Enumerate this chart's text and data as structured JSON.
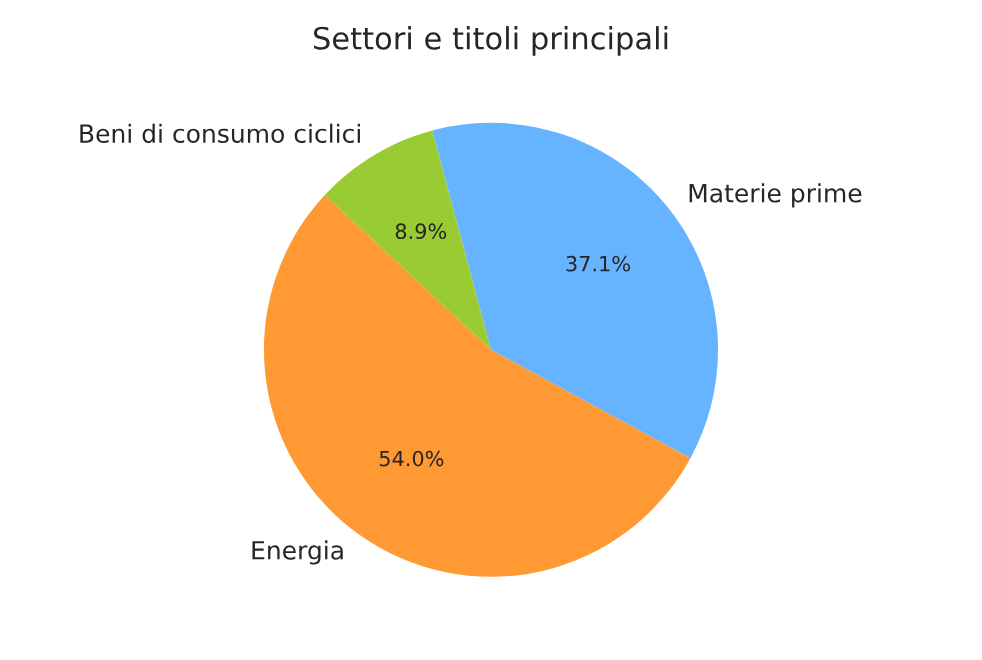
{
  "chart_data": {
    "type": "pie",
    "title": "Settori e titoli principali",
    "categories": [
      "Materie prime",
      "Energia",
      "Beni di consumo ciclici"
    ],
    "values": [
      37.1,
      54.0,
      8.9
    ],
    "colors": [
      "#66b3ff",
      "#ff9933",
      "#99cc33"
    ],
    "value_labels": [
      "37.1%",
      "54.0%",
      "8.9%"
    ]
  }
}
